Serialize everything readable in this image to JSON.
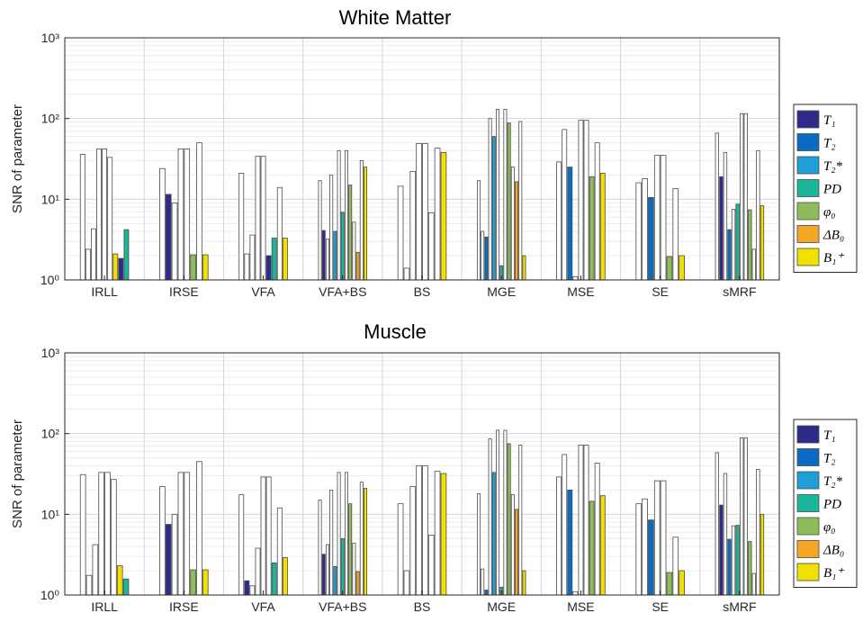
{
  "colors": {
    "T1": "#2e2a8c",
    "T2": "#0a6bc2",
    "T2star": "#1e9fd8",
    "PD": "#1bb59a",
    "phi0": "#8fbc5a",
    "dB0": "#f5a623",
    "B1": "#f2e000"
  },
  "legend": [
    {
      "key": "T1",
      "label": "T₁"
    },
    {
      "key": "T2",
      "label": "T₂"
    },
    {
      "key": "T2star",
      "label": "T₂*"
    },
    {
      "key": "PD",
      "label": "PD"
    },
    {
      "key": "phi0",
      "label": "φ₀"
    },
    {
      "key": "dB0",
      "label": "ΔB₀"
    },
    {
      "key": "B1",
      "label": "B₁⁺"
    }
  ],
  "chart_data": [
    {
      "type": "bar",
      "title": "White Matter",
      "ylabel": "SNR of parameter",
      "yscale": "log",
      "ylim": [
        1,
        1000
      ],
      "ytick_labels": [
        "10⁰",
        "10¹",
        "10²",
        "10³"
      ],
      "legend_position": "right",
      "grid": true,
      "categories": [
        "IRLL",
        "IRSE",
        "VFA",
        "VFA+BS",
        "BS",
        "MGE",
        "MSE",
        "SE",
        "sMRF"
      ],
      "groups": [
        [
          [
            36,
            null
          ],
          [
            2.4,
            null
          ],
          [
            4.3,
            null
          ],
          [
            42,
            null
          ],
          [
            42,
            null
          ],
          [
            33,
            null
          ],
          [
            2.1,
            "B1"
          ],
          [
            1.85,
            "T1"
          ],
          [
            4.2,
            "PD"
          ]
        ],
        [
          [
            24,
            null
          ],
          [
            11.5,
            "T1"
          ],
          [
            9,
            null
          ],
          [
            42,
            null
          ],
          [
            42,
            null
          ],
          [
            2.05,
            "phi0"
          ],
          [
            50,
            null
          ],
          [
            2.05,
            "B1"
          ]
        ],
        [
          [
            21,
            null
          ],
          [
            2.1,
            null
          ],
          [
            3.6,
            null
          ],
          [
            34,
            null
          ],
          [
            34,
            null
          ],
          [
            2.0,
            "T1"
          ],
          [
            3.3,
            "PD"
          ],
          [
            14,
            null
          ],
          [
            3.3,
            "B1"
          ]
        ],
        [
          [
            17,
            null
          ],
          [
            4.1,
            "T1"
          ],
          [
            3.2,
            null
          ],
          [
            20,
            null
          ],
          [
            4.0,
            "T2star"
          ],
          [
            40,
            null
          ],
          [
            6.9,
            "PD"
          ],
          [
            40,
            null
          ],
          [
            15,
            "phi0"
          ],
          [
            5.2,
            null
          ],
          [
            2.2,
            "dB0"
          ],
          [
            30,
            null
          ],
          [
            25,
            "B1"
          ]
        ],
        [
          [
            14.5,
            null
          ],
          [
            1.4,
            null
          ],
          [
            22,
            null
          ],
          [
            49,
            null
          ],
          [
            49,
            null
          ],
          [
            6.8,
            null
          ],
          [
            43,
            null
          ],
          [
            38,
            "B1"
          ]
        ],
        [
          [
            17,
            null
          ],
          [
            4.0,
            null
          ],
          [
            3.4,
            "T2"
          ],
          [
            100,
            null
          ],
          [
            60,
            "T2star"
          ],
          [
            130,
            null
          ],
          [
            1.5,
            "PD"
          ],
          [
            130,
            null
          ],
          [
            88,
            "phi0"
          ],
          [
            25,
            null
          ],
          [
            16.5,
            "dB0"
          ],
          [
            92,
            null
          ],
          [
            2.0,
            "B1"
          ]
        ],
        [
          [
            29,
            null
          ],
          [
            73,
            null
          ],
          [
            25,
            "T2"
          ],
          [
            1.1,
            null
          ],
          [
            95,
            null
          ],
          [
            95,
            null
          ],
          [
            19,
            "phi0"
          ],
          [
            50,
            null
          ],
          [
            21,
            "B1"
          ]
        ],
        [
          [
            16,
            null
          ],
          [
            18,
            null
          ],
          [
            10.5,
            "T2"
          ],
          [
            35,
            null
          ],
          [
            35,
            null
          ],
          [
            1.95,
            "phi0"
          ],
          [
            13.5,
            null
          ],
          [
            2.0,
            "B1"
          ]
        ],
        [
          [
            66,
            null
          ],
          [
            19,
            "T1"
          ],
          [
            38,
            null
          ],
          [
            4.2,
            "T2"
          ],
          [
            7.5,
            null
          ],
          [
            8.7,
            "PD"
          ],
          [
            115,
            null
          ],
          [
            115,
            null
          ],
          [
            7.4,
            "phi0"
          ],
          [
            2.4,
            null
          ],
          [
            40,
            null
          ],
          [
            8.3,
            "B1"
          ]
        ]
      ]
    },
    {
      "type": "bar",
      "title": "Muscle",
      "ylabel": "SNR of parameter",
      "yscale": "log",
      "ylim": [
        1,
        1000
      ],
      "ytick_labels": [
        "10⁰",
        "10¹",
        "10²",
        "10³"
      ],
      "legend_position": "right",
      "grid": true,
      "categories": [
        "IRLL",
        "IRSE",
        "VFA",
        "VFA+BS",
        "BS",
        "MGE",
        "MSE",
        "SE",
        "sMRF"
      ],
      "groups": [
        [
          [
            31,
            null
          ],
          [
            1.75,
            null
          ],
          [
            4.2,
            null
          ],
          [
            33,
            null
          ],
          [
            33,
            null
          ],
          [
            27,
            null
          ],
          [
            2.3,
            "B1"
          ],
          [
            1.58,
            "PD"
          ]
        ],
        [
          [
            22,
            null
          ],
          [
            7.5,
            "T1"
          ],
          [
            10,
            null
          ],
          [
            33,
            null
          ],
          [
            33,
            null
          ],
          [
            2.05,
            "phi0"
          ],
          [
            45,
            null
          ],
          [
            2.05,
            "B1"
          ]
        ],
        [
          [
            17.5,
            null
          ],
          [
            1.5,
            "T1"
          ],
          [
            1.3,
            null
          ],
          [
            3.8,
            null
          ],
          [
            29,
            null
          ],
          [
            29,
            null
          ],
          [
            2.5,
            "PD"
          ],
          [
            12,
            null
          ],
          [
            2.9,
            "B1"
          ]
        ],
        [
          [
            15,
            null
          ],
          [
            3.2,
            "T1"
          ],
          [
            4.2,
            null
          ],
          [
            20,
            null
          ],
          [
            2.25,
            "T2star"
          ],
          [
            33,
            null
          ],
          [
            5.0,
            "PD"
          ],
          [
            33,
            null
          ],
          [
            13.5,
            "phi0"
          ],
          [
            4.4,
            null
          ],
          [
            1.95,
            "dB0"
          ],
          [
            25,
            null
          ],
          [
            21,
            "B1"
          ]
        ],
        [
          [
            13.5,
            null
          ],
          [
            2.0,
            null
          ],
          [
            22,
            null
          ],
          [
            40,
            null
          ],
          [
            40,
            null
          ],
          [
            5.5,
            null
          ],
          [
            34,
            null
          ],
          [
            32,
            "B1"
          ]
        ],
        [
          [
            18,
            null
          ],
          [
            2.1,
            null
          ],
          [
            1.15,
            "T2"
          ],
          [
            86,
            null
          ],
          [
            33,
            "T2star"
          ],
          [
            110,
            null
          ],
          [
            1.25,
            "PD"
          ],
          [
            110,
            null
          ],
          [
            75,
            "phi0"
          ],
          [
            17.5,
            null
          ],
          [
            11.5,
            "dB0"
          ],
          [
            72,
            null
          ],
          [
            2.0,
            "B1"
          ]
        ],
        [
          [
            29,
            null
          ],
          [
            55,
            null
          ],
          [
            20,
            "T2"
          ],
          [
            1.1,
            null
          ],
          [
            72,
            null
          ],
          [
            72,
            null
          ],
          [
            14.5,
            "phi0"
          ],
          [
            43,
            null
          ],
          [
            17,
            "B1"
          ]
        ],
        [
          [
            13.5,
            null
          ],
          [
            15.5,
            null
          ],
          [
            8.5,
            "T2"
          ],
          [
            26,
            null
          ],
          [
            26,
            null
          ],
          [
            1.9,
            "phi0"
          ],
          [
            5.2,
            null
          ],
          [
            2.0,
            "B1"
          ]
        ],
        [
          [
            58,
            null
          ],
          [
            13,
            "T1"
          ],
          [
            32,
            null
          ],
          [
            4.9,
            "T2"
          ],
          [
            7.2,
            null
          ],
          [
            7.3,
            "PD"
          ],
          [
            88,
            null
          ],
          [
            88,
            null
          ],
          [
            4.6,
            "phi0"
          ],
          [
            1.85,
            null
          ],
          [
            36,
            null
          ],
          [
            10,
            "B1"
          ]
        ]
      ]
    }
  ]
}
